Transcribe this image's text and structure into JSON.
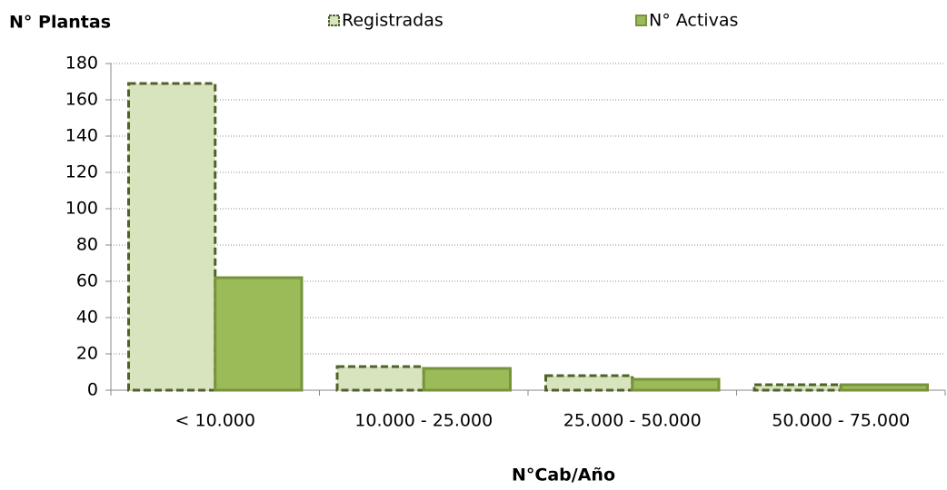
{
  "chart_data": {
    "type": "bar",
    "y_label": "N° Plantas",
    "x_label": "N°Cab/Año",
    "categories": [
      "< 10.000",
      "10.000 - 25.000",
      "25.000 - 50.000",
      "50.000 - 75.000"
    ],
    "series": [
      {
        "name": "Registradas",
        "color": "#d7e4bd",
        "stroke": "#4f6228",
        "dashed": true,
        "values": [
          169,
          13,
          8,
          3
        ]
      },
      {
        "name": "N° Activas",
        "color": "#9bbb59",
        "stroke": "#77933c",
        "dashed": false,
        "values": [
          62,
          12,
          6,
          3
        ]
      }
    ],
    "ylim": [
      0,
      180
    ],
    "yticks": [
      0,
      20,
      40,
      60,
      80,
      100,
      120,
      140,
      160,
      180
    ],
    "grid": true,
    "legend": "top"
  }
}
